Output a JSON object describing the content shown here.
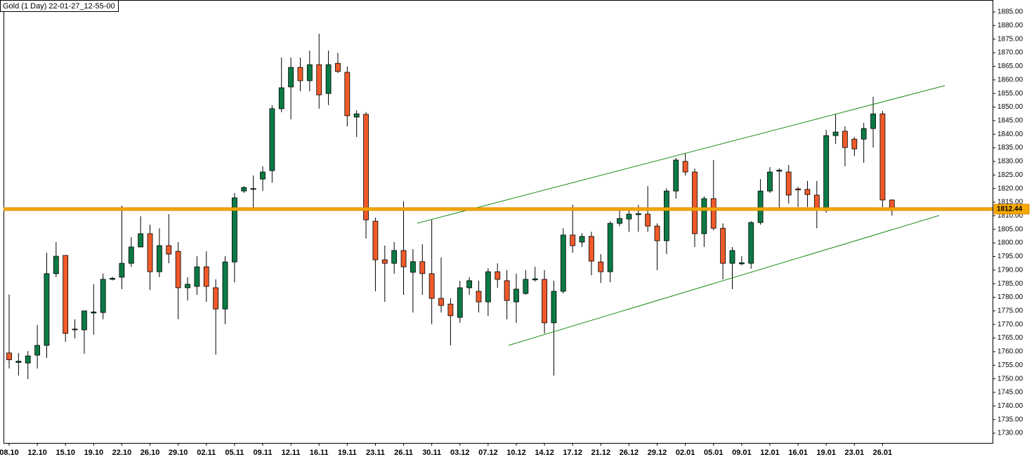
{
  "chart_data": {
    "type": "candlestick",
    "title": "Gold (1 Day) 22-01-27_12-55-00",
    "categories": [
      "08.10",
      null,
      null,
      "12.10",
      null,
      null,
      "15.10",
      null,
      null,
      "19.10",
      null,
      null,
      "22.10",
      null,
      null,
      "26.10",
      null,
      null,
      "29.10",
      null,
      null,
      "02.11",
      null,
      null,
      "05.11",
      null,
      null,
      "09.11",
      null,
      null,
      "12.11",
      null,
      null,
      "16.11",
      null,
      null,
      "19.11",
      null,
      null,
      "23.11",
      null,
      null,
      "26.11",
      null,
      null,
      "30.11",
      null,
      null,
      "03.12",
      null,
      null,
      "07.12",
      null,
      null,
      "10.12",
      null,
      null,
      "14.12",
      null,
      null,
      "17.12",
      null,
      null,
      "21.12",
      null,
      null,
      "26.12",
      null,
      null,
      "29.12",
      null,
      null,
      "02.01",
      null,
      null,
      "05.01",
      null,
      null,
      "09.01",
      null,
      null,
      "12.01",
      null,
      null,
      "16.01",
      null,
      null,
      "19.01",
      null,
      null,
      "23.01",
      null,
      null,
      "26.01",
      null
    ],
    "open": [
      1759.5,
      1756,
      1755.8,
      1758.7,
      1762.3,
      1788.7,
      1795.4,
      1768,
      1768,
      1774.2,
      1774.4,
      1786.6,
      1787.4,
      1792.5,
      1798.5,
      1803.4,
      1789.4,
      1799,
      1796.9,
      1783.5,
      1784,
      1791.2,
      1783.5,
      1775.7,
      1793,
      1819.1,
      1819.7,
      1823.5,
      1826.6,
      1849.4,
      1857.4,
      1864.6,
      1859.7,
      1865.6,
      1855,
      1866.1,
      1862.8,
      1846.3,
      1847.3,
      1808,
      1793.8,
      1792.5,
      1797.2,
      1789.2,
      1793.1,
      1788.7,
      1779.6,
      1777.5,
      1772.6,
      1783.5,
      1782.2,
      1778.3,
      1789.4,
      1786.1,
      1778.3,
      1781.4,
      1786.4,
      1786.6,
      1770.6,
      1782.2,
      1802.9,
      1800.3,
      1802.4,
      1793,
      1789.4,
      1807.2,
      1808.8,
      1810.4,
      1810.6,
      1806.2,
      1800.8,
      1819.1,
      1830,
      1826.1,
      1803.4,
      1816.3,
      1805.4,
      1792.5,
      1792.3,
      1792.5,
      1807.5,
      1819.1,
      1826.4,
      1826.1,
      1819.9,
      1819.7,
      1817.6,
      1811.9,
      1839.5,
      1841.1,
      1838.2,
      1838.2,
      1842.1,
      1847.5,
      1815.8
    ],
    "high": [
      1781,
      1759.5,
      1760.2,
      1769.8,
      1796.4,
      1800.3,
      1795.4,
      1771.9,
      1775,
      1784.8,
      1788.7,
      1787.5,
      1813.7,
      1802.1,
      1809.8,
      1806.7,
      1805.4,
      1810.6,
      1800.3,
      1787.4,
      1795.1,
      1796.9,
      1786.6,
      1795.1,
      1818.4,
      1820.9,
      1824.8,
      1828.2,
      1850.7,
      1868.2,
      1868.2,
      1868.2,
      1870.8,
      1877,
      1870.8,
      1870,
      1864.9,
      1848.8,
      1848.1,
      1809.3,
      1799,
      1800.3,
      1815.3,
      1797.7,
      1799.5,
      1808.5,
      1794.6,
      1779.6,
      1786.1,
      1787.4,
      1786.1,
      1790.7,
      1792.5,
      1790,
      1788.7,
      1790,
      1791.2,
      1790,
      1786.1,
      1805.4,
      1814,
      1803.6,
      1804.1,
      1795.9,
      1808,
      1811.9,
      1811.9,
      1814,
      1820.9,
      1807.2,
      1820.1,
      1831.3,
      1833.1,
      1827.4,
      1817.1,
      1830.5,
      1807.2,
      1798.5,
      1795.1,
      1808,
      1823.5,
      1827.9,
      1827.4,
      1828.7,
      1820.6,
      1822.8,
      1822.8,
      1841.6,
      1847.5,
      1842.9,
      1839,
      1844.2,
      1853.8,
      1848.6,
      1816
    ],
    "low": [
      1753.8,
      1751.2,
      1749.9,
      1753.8,
      1757.7,
      1787.4,
      1763.6,
      1764.9,
      1759.2,
      1766.2,
      1771.9,
      1786.2,
      1783,
      1791.2,
      1798.5,
      1782.7,
      1787.4,
      1792.5,
      1771.9,
      1778.8,
      1780.9,
      1778.3,
      1758.9,
      1770.1,
      1785.5,
      1818.4,
      1811.9,
      1819.1,
      1822.2,
      1848.1,
      1845.5,
      1855.8,
      1855.8,
      1849.4,
      1850.7,
      1862.5,
      1842.9,
      1839,
      1801.6,
      1782.2,
      1778.3,
      1788.7,
      1780.9,
      1774.4,
      1780.9,
      1770.1,
      1774.4,
      1762.3,
      1770.6,
      1780.9,
      1774.4,
      1773.1,
      1783.5,
      1771.9,
      1770.6,
      1780.9,
      1785.8,
      1766.7,
      1751.2,
      1781.4,
      1796.4,
      1798.5,
      1788.1,
      1785.3,
      1785.5,
      1806.2,
      1804.1,
      1804.1,
      1804.1,
      1790,
      1795.9,
      1816.3,
      1824.8,
      1798.5,
      1798.5,
      1804.6,
      1786.6,
      1783,
      1791.8,
      1790.5,
      1806.7,
      1818.4,
      1812.4,
      1814.5,
      1813.2,
      1813.2,
      1805.4,
      1811.1,
      1836.4,
      1828.2,
      1832,
      1829.5,
      1835.1,
      1813.2,
      1810.1
    ],
    "close": [
      1757,
      1756.5,
      1758.4,
      1762.3,
      1788.7,
      1795.1,
      1766.7,
      1768.3,
      1775,
      1774.6,
      1786.6,
      1787,
      1792.5,
      1798.5,
      1803.4,
      1789.4,
      1799,
      1795.9,
      1783.5,
      1784.8,
      1791.2,
      1784,
      1775.7,
      1793,
      1816.6,
      1820.4,
      1820,
      1826.1,
      1849.4,
      1857.1,
      1864.6,
      1859.7,
      1865.6,
      1854.5,
      1865.6,
      1863.1,
      1846.8,
      1847.5,
      1808.5,
      1793.8,
      1792.5,
      1797.2,
      1791.2,
      1793.1,
      1788.7,
      1779.6,
      1777,
      1773.2,
      1783.5,
      1786.1,
      1778.3,
      1789.4,
      1786.6,
      1778.8,
      1783,
      1786.6,
      1786.8,
      1770.6,
      1782.2,
      1802.9,
      1799,
      1802.4,
      1793.3,
      1789.4,
      1807.2,
      1809,
      1810.6,
      1810.8,
      1806.2,
      1800.8,
      1819.1,
      1830.5,
      1826.1,
      1803.4,
      1816.3,
      1805.4,
      1792.5,
      1797.2,
      1792.7,
      1807.5,
      1819.1,
      1826.1,
      1826.8,
      1817.6,
      1819.5,
      1817.8,
      1812.4,
      1839.5,
      1840.8,
      1835.1,
      1834.6,
      1842.1,
      1847.5,
      1815.8,
      1812.44
    ],
    "up_color": "#0b7a45",
    "down_color": "#f05a2a",
    "last_price": 1812.44,
    "last_price_color": "#f5a800",
    "ylim": [
      1726.4,
      1889.4
    ],
    "yticks": [
      {
        "value": 1730,
        "label": "1730.00"
      },
      {
        "value": 1735,
        "label": "1735.00"
      },
      {
        "value": 1740,
        "label": "1740.00"
      },
      {
        "value": 1745,
        "label": "1745.00"
      },
      {
        "value": 1750,
        "label": "1750.00"
      },
      {
        "value": 1755,
        "label": "1755.00"
      },
      {
        "value": 1760,
        "label": "1760.00"
      },
      {
        "value": 1765,
        "label": "1765.00"
      },
      {
        "value": 1770,
        "label": "1770.00"
      },
      {
        "value": 1775,
        "label": "1775.00"
      },
      {
        "value": 1780,
        "label": "1780.00"
      },
      {
        "value": 1785,
        "label": "1785.00"
      },
      {
        "value": 1790,
        "label": "1790.00"
      },
      {
        "value": 1795,
        "label": "1795.00"
      },
      {
        "value": 1800,
        "label": "1800.00"
      },
      {
        "value": 1805,
        "label": "1805.00"
      },
      {
        "value": 1810,
        "label": "1810.00"
      },
      {
        "value": 1815,
        "label": "1815.00"
      },
      {
        "value": 1820,
        "label": "1820.00"
      },
      {
        "value": 1825,
        "label": "1825.00"
      },
      {
        "value": 1830,
        "label": "1830.00"
      },
      {
        "value": 1835,
        "label": "1835.00"
      },
      {
        "value": 1840,
        "label": "1840.00"
      },
      {
        "value": 1845,
        "label": "1845.00"
      },
      {
        "value": 1850,
        "label": "1850.00"
      },
      {
        "value": 1855,
        "label": "1855.00"
      },
      {
        "value": 1860,
        "label": "1860.00"
      },
      {
        "value": 1865,
        "label": "1865.00"
      },
      {
        "value": 1870,
        "label": "1870.00"
      },
      {
        "value": 1875,
        "label": "1875.00"
      },
      {
        "value": 1880,
        "label": "1880.00"
      },
      {
        "value": 1885,
        "label": "1885.00"
      }
    ],
    "grid": false
  }
}
